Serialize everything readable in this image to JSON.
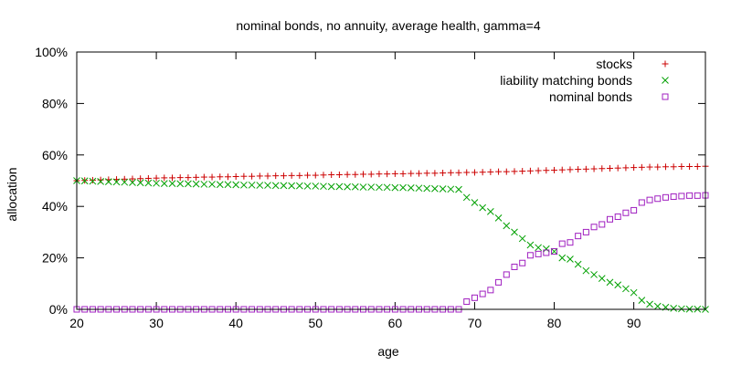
{
  "chart_data": {
    "type": "scatter",
    "title": "nominal bonds, no annuity, average health, gamma=4",
    "xlabel": "age",
    "ylabel": "allocation",
    "xlim": [
      20,
      99
    ],
    "ylim": [
      0,
      1
    ],
    "x_ticks": [
      20,
      30,
      40,
      50,
      60,
      70,
      80,
      90
    ],
    "x_tick_labels": [
      "20",
      "30",
      "40",
      "50",
      "60",
      "70",
      "80",
      "90"
    ],
    "y_ticks": [
      0,
      0.2,
      0.4,
      0.6,
      0.8,
      1.0
    ],
    "y_tick_labels": [
      "0%",
      "20%",
      "40%",
      "60%",
      "80%",
      "100%"
    ],
    "grid": false,
    "legend_position": "top-right",
    "series": [
      {
        "name": "stocks",
        "marker": "+",
        "color": "#cc0000",
        "x": [
          20,
          21,
          22,
          23,
          24,
          25,
          26,
          27,
          28,
          29,
          30,
          31,
          32,
          33,
          34,
          35,
          36,
          37,
          38,
          39,
          40,
          41,
          42,
          43,
          44,
          45,
          46,
          47,
          48,
          49,
          50,
          51,
          52,
          53,
          54,
          55,
          56,
          57,
          58,
          59,
          60,
          61,
          62,
          63,
          64,
          65,
          66,
          67,
          68,
          69,
          70,
          71,
          72,
          73,
          74,
          75,
          76,
          77,
          78,
          79,
          80,
          81,
          82,
          83,
          84,
          85,
          86,
          87,
          88,
          89,
          90,
          91,
          92,
          93,
          94,
          95,
          96,
          97,
          98,
          99
        ],
        "values": [
          0.5,
          0.501,
          0.502,
          0.503,
          0.504,
          0.505,
          0.506,
          0.507,
          0.508,
          0.509,
          0.51,
          0.511,
          0.511,
          0.512,
          0.512,
          0.513,
          0.514,
          0.514,
          0.515,
          0.515,
          0.516,
          0.517,
          0.517,
          0.518,
          0.518,
          0.519,
          0.519,
          0.52,
          0.52,
          0.521,
          0.521,
          0.522,
          0.523,
          0.523,
          0.524,
          0.524,
          0.525,
          0.525,
          0.526,
          0.526,
          0.527,
          0.527,
          0.528,
          0.528,
          0.529,
          0.529,
          0.53,
          0.531,
          0.531,
          0.532,
          0.532,
          0.533,
          0.534,
          0.535,
          0.535,
          0.536,
          0.537,
          0.538,
          0.539,
          0.54,
          0.541,
          0.542,
          0.543,
          0.544,
          0.545,
          0.546,
          0.547,
          0.548,
          0.549,
          0.55,
          0.551,
          0.552,
          0.553,
          0.553,
          0.554,
          0.554,
          0.555,
          0.555,
          0.555,
          0.556
        ]
      },
      {
        "name": "liability matching bonds",
        "marker": "x",
        "color": "#00a000",
        "x": [
          20,
          21,
          22,
          23,
          24,
          25,
          26,
          27,
          28,
          29,
          30,
          31,
          32,
          33,
          34,
          35,
          36,
          37,
          38,
          39,
          40,
          41,
          42,
          43,
          44,
          45,
          46,
          47,
          48,
          49,
          50,
          51,
          52,
          53,
          54,
          55,
          56,
          57,
          58,
          59,
          60,
          61,
          62,
          63,
          64,
          65,
          66,
          67,
          68,
          69,
          70,
          71,
          72,
          73,
          74,
          75,
          76,
          77,
          78,
          79,
          80,
          81,
          82,
          83,
          84,
          85,
          86,
          87,
          88,
          89,
          90,
          91,
          92,
          93,
          94,
          95,
          96,
          97,
          98,
          99
        ],
        "values": [
          0.5,
          0.499,
          0.498,
          0.497,
          0.496,
          0.495,
          0.494,
          0.493,
          0.492,
          0.491,
          0.49,
          0.489,
          0.489,
          0.488,
          0.488,
          0.487,
          0.486,
          0.486,
          0.485,
          0.485,
          0.484,
          0.483,
          0.483,
          0.482,
          0.482,
          0.481,
          0.481,
          0.48,
          0.48,
          0.479,
          0.479,
          0.478,
          0.477,
          0.477,
          0.476,
          0.476,
          0.475,
          0.475,
          0.474,
          0.474,
          0.473,
          0.473,
          0.472,
          0.471,
          0.47,
          0.469,
          0.468,
          0.467,
          0.466,
          0.435,
          0.415,
          0.395,
          0.38,
          0.355,
          0.325,
          0.3,
          0.275,
          0.25,
          0.24,
          0.235,
          0.225,
          0.2,
          0.195,
          0.175,
          0.15,
          0.135,
          0.12,
          0.105,
          0.095,
          0.08,
          0.065,
          0.035,
          0.02,
          0.012,
          0.008,
          0.004,
          0.002,
          0.001,
          0.001,
          0.0
        ]
      },
      {
        "name": "nominal bonds",
        "marker": "square",
        "color": "#a020c0",
        "x": [
          20,
          21,
          22,
          23,
          24,
          25,
          26,
          27,
          28,
          29,
          30,
          31,
          32,
          33,
          34,
          35,
          36,
          37,
          38,
          39,
          40,
          41,
          42,
          43,
          44,
          45,
          46,
          47,
          48,
          49,
          50,
          51,
          52,
          53,
          54,
          55,
          56,
          57,
          58,
          59,
          60,
          61,
          62,
          63,
          64,
          65,
          66,
          67,
          68,
          69,
          70,
          71,
          72,
          73,
          74,
          75,
          76,
          77,
          78,
          79,
          80,
          81,
          82,
          83,
          84,
          85,
          86,
          87,
          88,
          89,
          90,
          91,
          92,
          93,
          94,
          95,
          96,
          97,
          98,
          99
        ],
        "values": [
          0,
          0,
          0,
          0,
          0,
          0,
          0,
          0,
          0,
          0,
          0,
          0,
          0,
          0,
          0,
          0,
          0,
          0,
          0,
          0,
          0,
          0,
          0,
          0,
          0,
          0,
          0,
          0,
          0,
          0,
          0,
          0,
          0,
          0,
          0,
          0,
          0,
          0,
          0,
          0,
          0,
          0,
          0,
          0,
          0,
          0,
          0,
          0,
          0,
          0.03,
          0.045,
          0.06,
          0.075,
          0.105,
          0.135,
          0.165,
          0.18,
          0.21,
          0.215,
          0.22,
          0.225,
          0.255,
          0.26,
          0.285,
          0.3,
          0.32,
          0.33,
          0.35,
          0.36,
          0.375,
          0.385,
          0.415,
          0.425,
          0.43,
          0.435,
          0.438,
          0.44,
          0.442,
          0.442,
          0.443
        ]
      }
    ]
  }
}
